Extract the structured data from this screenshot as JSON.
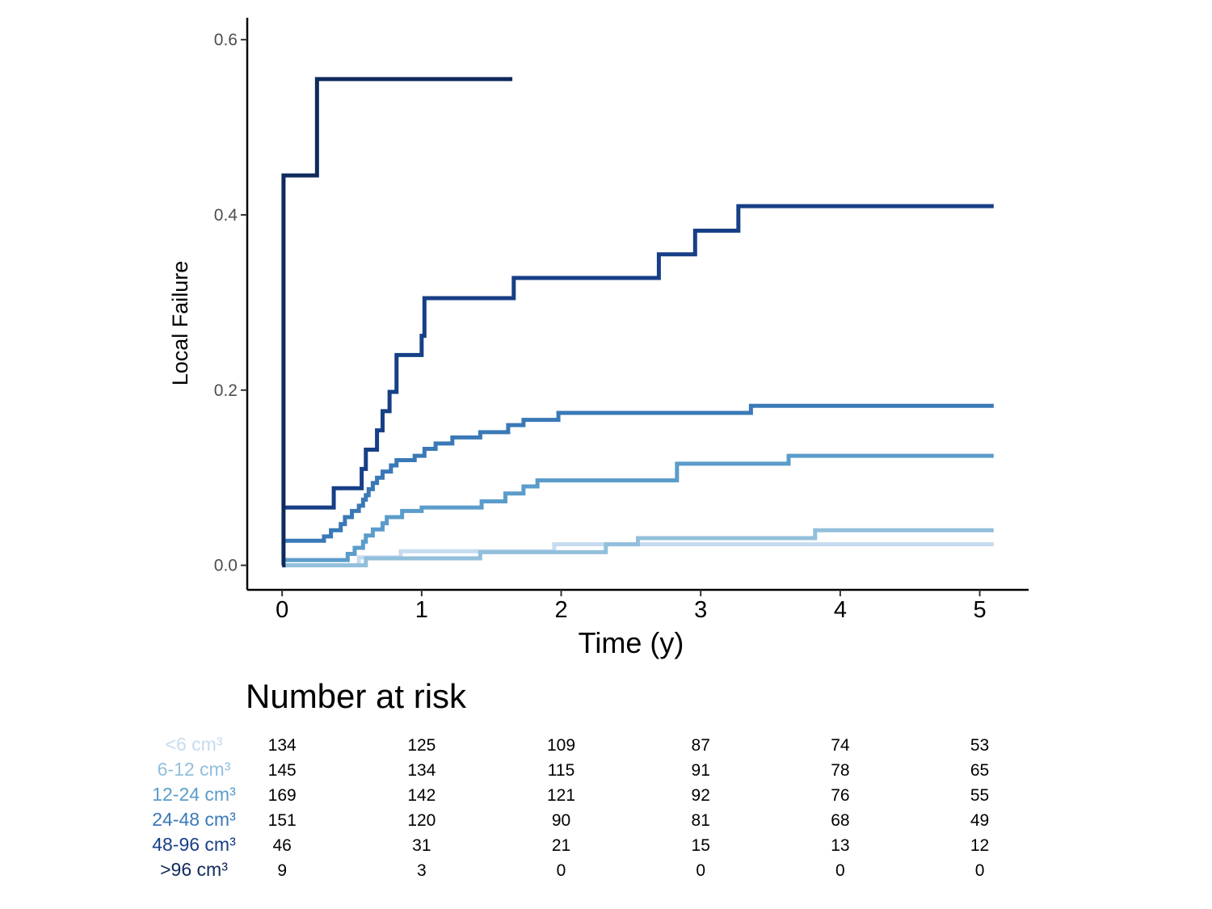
{
  "chart_data": {
    "type": "line",
    "step": true,
    "xlabel": "Time (y)",
    "ylabel": "Local Failure",
    "xlim": [
      -0.25,
      5.35
    ],
    "ylim": [
      -0.028,
      0.625
    ],
    "xticks": [
      0,
      1,
      2,
      3,
      4,
      5
    ],
    "xtick_labels": [
      "0",
      "1",
      "2",
      "3",
      "4",
      "5"
    ],
    "yticks": [
      0.0,
      0.2,
      0.4,
      0.6
    ],
    "ytick_labels": [
      "0.0",
      "0.2",
      "0.4",
      "0.6"
    ],
    "grid": false,
    "legend": "none",
    "series": [
      {
        "name": "<6 cm³",
        "color": "#c6dbef",
        "x": [
          0,
          0.55,
          0.85,
          1.95,
          5.1
        ],
        "y": [
          0.0,
          0.009,
          0.016,
          0.024,
          0.024
        ]
      },
      {
        "name": "6-12 cm³",
        "color": "#92bfdb",
        "x": [
          0,
          0.6,
          1.42,
          2.32,
          2.55,
          3.82,
          5.1
        ],
        "y": [
          0.0,
          0.008,
          0.015,
          0.024,
          0.031,
          0.04,
          0.04
        ]
      },
      {
        "name": "12-24 cm³",
        "color": "#5b9ccb",
        "x": [
          0,
          0.47,
          0.52,
          0.58,
          0.6,
          0.65,
          0.72,
          0.75,
          0.86,
          1.0,
          1.43,
          1.6,
          1.73,
          1.83,
          2.83,
          3.63,
          5.1
        ],
        "y": [
          0.006,
          0.013,
          0.02,
          0.027,
          0.034,
          0.041,
          0.048,
          0.055,
          0.062,
          0.066,
          0.073,
          0.082,
          0.09,
          0.097,
          0.116,
          0.125,
          0.125
        ]
      },
      {
        "name": "24-48 cm³",
        "color": "#3a79b6",
        "x": [
          0,
          0.3,
          0.35,
          0.42,
          0.45,
          0.5,
          0.55,
          0.58,
          0.6,
          0.62,
          0.65,
          0.68,
          0.72,
          0.78,
          0.82,
          0.95,
          1.02,
          1.1,
          1.22,
          1.42,
          1.62,
          1.73,
          1.98,
          3.36,
          5.1
        ],
        "y": [
          0.028,
          0.033,
          0.04,
          0.047,
          0.055,
          0.062,
          0.068,
          0.075,
          0.08,
          0.087,
          0.094,
          0.1,
          0.107,
          0.114,
          0.12,
          0.125,
          0.133,
          0.139,
          0.146,
          0.152,
          0.16,
          0.166,
          0.174,
          0.182,
          0.182
        ]
      },
      {
        "name": "48-96 cm³",
        "color": "#173f86",
        "x": [
          0,
          0.37,
          0.57,
          0.6,
          0.68,
          0.72,
          0.77,
          0.82,
          1.0,
          1.02,
          1.66,
          2.7,
          2.96,
          3.27,
          5.1
        ],
        "y": [
          0.066,
          0.088,
          0.11,
          0.132,
          0.154,
          0.176,
          0.198,
          0.24,
          0.262,
          0.305,
          0.328,
          0.355,
          0.382,
          0.41,
          0.41
        ]
      },
      {
        "name": ">96 cm³",
        "color": "#0f2a5c",
        "x": [
          0,
          0.01,
          0.25,
          1.65
        ],
        "y": [
          0.0,
          0.445,
          0.555,
          0.555
        ]
      }
    ],
    "risk_table": {
      "title": "Number at risk",
      "times": [
        0,
        1,
        2,
        3,
        4,
        5
      ],
      "rows": [
        {
          "label": "<6 cm³",
          "color": "#c6dbef",
          "counts": [
            "134",
            "125",
            "109",
            "87",
            "74",
            "53"
          ]
        },
        {
          "label": "6-12 cm³",
          "color": "#92bfdb",
          "counts": [
            "145",
            "134",
            "115",
            "91",
            "78",
            "65"
          ]
        },
        {
          "label": "12-24 cm³",
          "color": "#5b9ccb",
          "counts": [
            "169",
            "142",
            "121",
            "92",
            "76",
            "55"
          ]
        },
        {
          "label": "24-48 cm³",
          "color": "#3a79b6",
          "counts": [
            "151",
            "120",
            "90",
            "81",
            "68",
            "49"
          ]
        },
        {
          "label": "48-96 cm³",
          "color": "#173f86",
          "counts": [
            "46",
            "31",
            "21",
            "15",
            "13",
            "12"
          ]
        },
        {
          "label": ">96 cm³",
          "color": "#0f2a5c",
          "counts": [
            "9",
            "3",
            "0",
            "0",
            "0",
            "0"
          ]
        }
      ]
    }
  }
}
